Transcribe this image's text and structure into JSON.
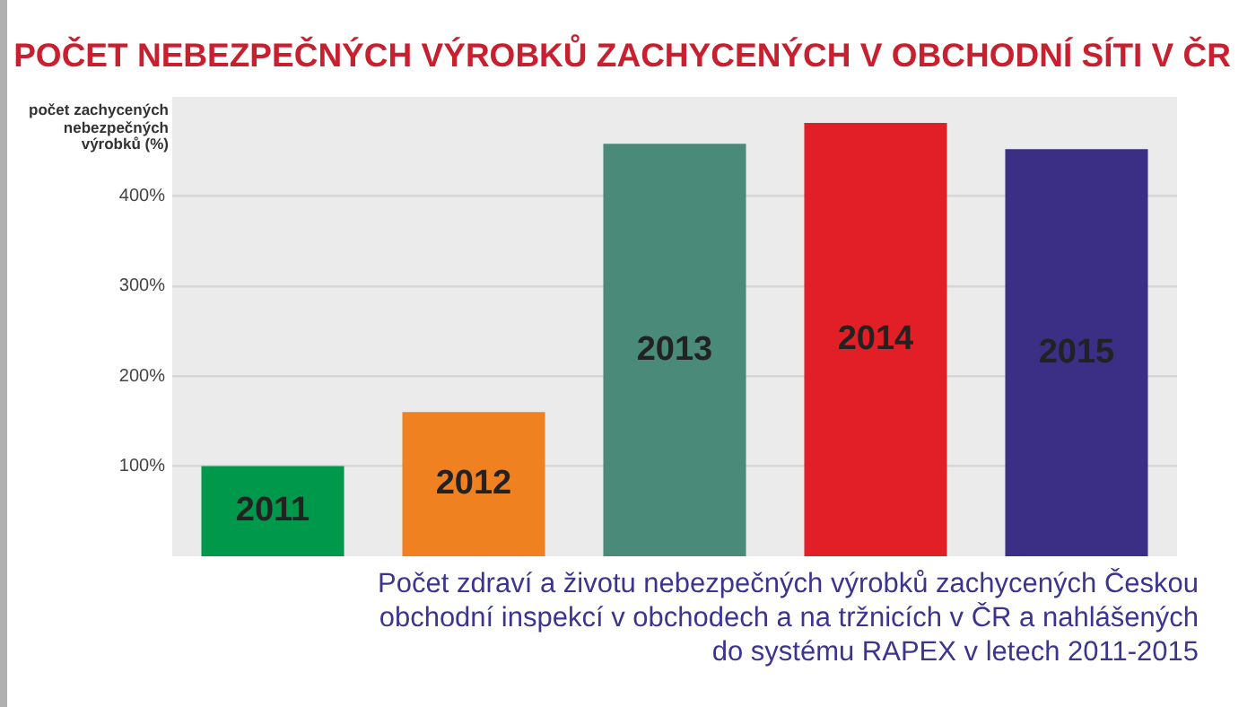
{
  "chart_data": {
    "type": "bar",
    "title": "POČET NEBEZPEČNÝCH VÝROBKŮ ZACHYCENÝCH V OBCHODNÍ SÍTI V ČR",
    "ylabel": "počet zachycených nebezpečných výrobků (%)",
    "categories": [
      "2011",
      "2012",
      "2013",
      "2014",
      "2015"
    ],
    "values": [
      100,
      160,
      458,
      481,
      452
    ],
    "colors": [
      "#00984a",
      "#ef8121",
      "#4a8a78",
      "#e21e26",
      "#3a2f85"
    ],
    "ylim": [
      0,
      510
    ],
    "yticks": [
      {
        "value": 100,
        "label": "100%"
      },
      {
        "value": 200,
        "label": "200%"
      },
      {
        "value": 300,
        "label": "300%"
      },
      {
        "value": 400,
        "label": "400%"
      }
    ],
    "grid": "y",
    "legend": false,
    "annotations": [
      "Počet zdraví a životu nebezpečných výrobků zachycených Českou obchodní inspekcí v obchodech a na tržnicích v ČR a nahlášených do systému RAPEX v letech 2011-2015"
    ]
  }
}
